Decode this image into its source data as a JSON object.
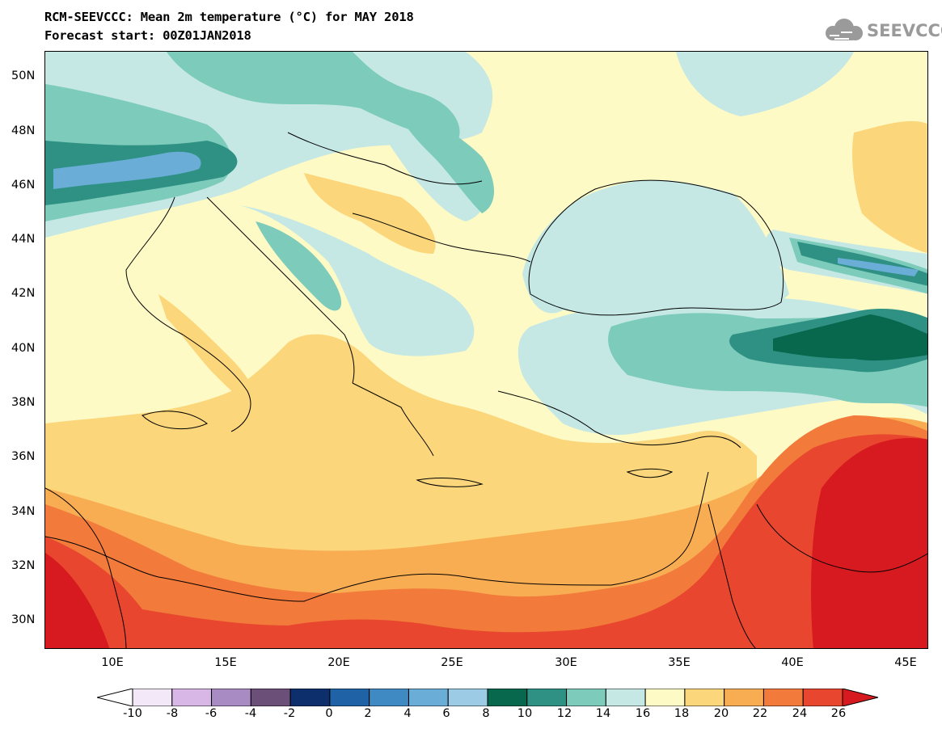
{
  "title_line1": "RCM-SEEVCCC: Mean 2m temperature (°C) for MAY 2018",
  "title_line2": "Forecast start: 00Z01JAN2018",
  "logo_text": "SEEVCCC",
  "map": {
    "lat_labels": [
      "50N",
      "48N",
      "46N",
      "44N",
      "42N",
      "40N",
      "38N",
      "36N",
      "34N",
      "32N",
      "30N"
    ],
    "lon_labels": [
      "10E",
      "15E",
      "20E",
      "25E",
      "30E",
      "35E",
      "40E",
      "45E"
    ],
    "extent": {
      "lon_min": 7,
      "lon_max": 46,
      "lat_min": 29,
      "lat_max": 51
    }
  },
  "colorbar": {
    "labels": [
      "-10",
      "-8",
      "-6",
      "-4",
      "-2",
      "0",
      "2",
      "4",
      "6",
      "8",
      "10",
      "12",
      "14",
      "16",
      "18",
      "20",
      "22",
      "24",
      "26"
    ],
    "colors": [
      "#f3e8f8",
      "#d8b6e6",
      "#a98bc4",
      "#6b4f78",
      "#0d2f6b",
      "#1f63a6",
      "#3f8ac3",
      "#6aaed8",
      "#9ccbe6",
      "#08684d",
      "#2f9183",
      "#7ccbbb",
      "#c5e8e4",
      "#fefac6",
      "#fcd67a",
      "#f9ad52",
      "#f27a3b",
      "#e8462e"
    ],
    "under_color": "#ffffff",
    "over_color": "#d71a1f"
  }
}
